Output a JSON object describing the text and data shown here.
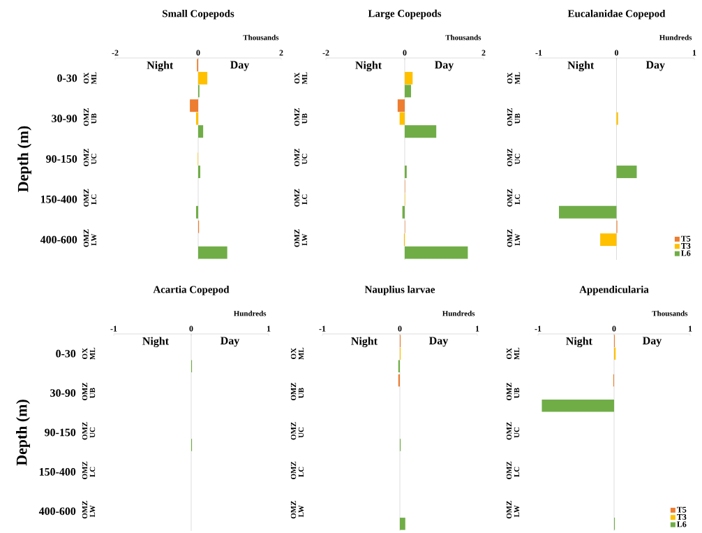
{
  "chart_data": [
    {
      "type": "bar",
      "orientation": "horizontal",
      "title": "Small Copepods",
      "xlabel": "Thousands",
      "ylabel": "Depth (m)",
      "categories": [
        "OX ML",
        "OMZ UB",
        "OMZ UC",
        "OMZ LC",
        "OMZ LW"
      ],
      "xlim": [
        -2,
        2
      ],
      "xticks": [
        -2,
        0,
        2
      ],
      "series": [
        {
          "color": "#ed7d31",
          "values": [
            -0.03,
            -0.2,
            0,
            0,
            0.02
          ]
        },
        {
          "color": "#ffc000",
          "values": [
            0.22,
            -0.05,
            -0.01,
            0,
            0
          ]
        },
        {
          "color": "#70ad47",
          "values": [
            0.03,
            0.12,
            0.05,
            -0.05,
            0.7
          ]
        }
      ],
      "annotations": [
        "Night",
        "Day",
        "0-30",
        "30-90",
        "90-150",
        "150-400",
        "400-600"
      ]
    },
    {
      "type": "bar",
      "orientation": "horizontal",
      "title": "Large Copepods",
      "xlabel": "Thousands",
      "categories": [
        "OX ML",
        "OMZ UB",
        "OMZ UC",
        "OMZ LC",
        "OMZ LW"
      ],
      "xlim": [
        -2,
        2
      ],
      "xticks": [
        -2,
        0,
        2
      ],
      "series": [
        {
          "color": "#ed7d31",
          "values": [
            0,
            -0.18,
            0,
            0.01,
            0.01
          ]
        },
        {
          "color": "#ffc000",
          "values": [
            0.2,
            -0.13,
            0,
            0.01,
            -0.02
          ]
        },
        {
          "color": "#70ad47",
          "values": [
            0.16,
            0.8,
            0.05,
            -0.06,
            1.6
          ]
        }
      ],
      "annotations": [
        "Night",
        "Day"
      ]
    },
    {
      "type": "bar",
      "orientation": "horizontal",
      "title": "Eucalanidae Copepod",
      "xlabel": "Hundreds",
      "categories": [
        "OX ML",
        "OMZ UB",
        "OMZ UC",
        "OMZ LC",
        "OMZ LW"
      ],
      "xlim": [
        -1,
        1
      ],
      "xticks": [
        -1,
        0,
        1
      ],
      "legend": "bottom right",
      "series": [
        {
          "name": "T5",
          "color": "#ed7d31",
          "values": [
            0,
            0,
            0,
            0,
            0.01
          ]
        },
        {
          "name": "T3",
          "color": "#ffc000",
          "values": [
            0,
            0.02,
            0,
            0,
            -0.21
          ]
        },
        {
          "name": "L6",
          "color": "#70ad47",
          "values": [
            0,
            0,
            0.26,
            -0.74,
            0
          ]
        }
      ],
      "annotations": [
        "Night",
        "Day"
      ]
    },
    {
      "type": "bar",
      "orientation": "horizontal",
      "title": "Acartia Copepod",
      "xlabel": "Hundreds",
      "ylabel": "Depth (m)",
      "categories": [
        "OX ML",
        "OMZ UB",
        "OMZ UC",
        "OMZ LC",
        "OMZ LW"
      ],
      "xlim": [
        -1,
        1
      ],
      "xticks": [
        -1,
        0,
        1
      ],
      "series": [
        {
          "color": "#ed7d31",
          "values": [
            0,
            0,
            0,
            0,
            0
          ]
        },
        {
          "color": "#ffc000",
          "values": [
            0,
            0,
            0,
            0,
            0
          ]
        },
        {
          "color": "#70ad47",
          "values": [
            0.01,
            0,
            0.01,
            0,
            0
          ]
        }
      ],
      "annotations": [
        "Night",
        "Day",
        "0-30",
        "30-90",
        "90-150",
        "150-400",
        "400-600"
      ]
    },
    {
      "type": "bar",
      "orientation": "horizontal",
      "title": "Nauplius larvae",
      "xlabel": "Hundreds",
      "categories": [
        "OX ML",
        "OMZ UB",
        "OMZ UC",
        "OMZ LC",
        "OMZ LW"
      ],
      "xlim": [
        -1,
        1
      ],
      "xticks": [
        -1,
        0,
        1
      ],
      "series": [
        {
          "color": "#ed7d31",
          "values": [
            0.01,
            -0.02,
            0,
            0,
            0
          ]
        },
        {
          "color": "#ffc000",
          "values": [
            0.01,
            0,
            0,
            0,
            0
          ]
        },
        {
          "color": "#70ad47",
          "values": [
            -0.02,
            0,
            0.01,
            0,
            0.07
          ]
        }
      ],
      "annotations": [
        "Night",
        "Day"
      ]
    },
    {
      "type": "bar",
      "orientation": "horizontal",
      "title": "Appendicularia",
      "xlabel": "Thousands",
      "categories": [
        "OX ML",
        "OMZ UB",
        "OMZ UC",
        "OMZ LC",
        "OMZ LW"
      ],
      "xlim": [
        -1,
        1
      ],
      "xticks": [
        -1,
        0,
        1
      ],
      "legend": "bottom right",
      "series": [
        {
          "name": "T5",
          "color": "#ed7d31",
          "values": [
            0.01,
            -0.01,
            0,
            0,
            0
          ]
        },
        {
          "name": "T3",
          "color": "#ffc000",
          "values": [
            0.02,
            0,
            0,
            0,
            0
          ]
        },
        {
          "name": "L6",
          "color": "#70ad47",
          "values": [
            0,
            -0.95,
            0,
            0,
            0.01
          ]
        }
      ],
      "annotations": [
        "Night",
        "Day"
      ]
    }
  ]
}
